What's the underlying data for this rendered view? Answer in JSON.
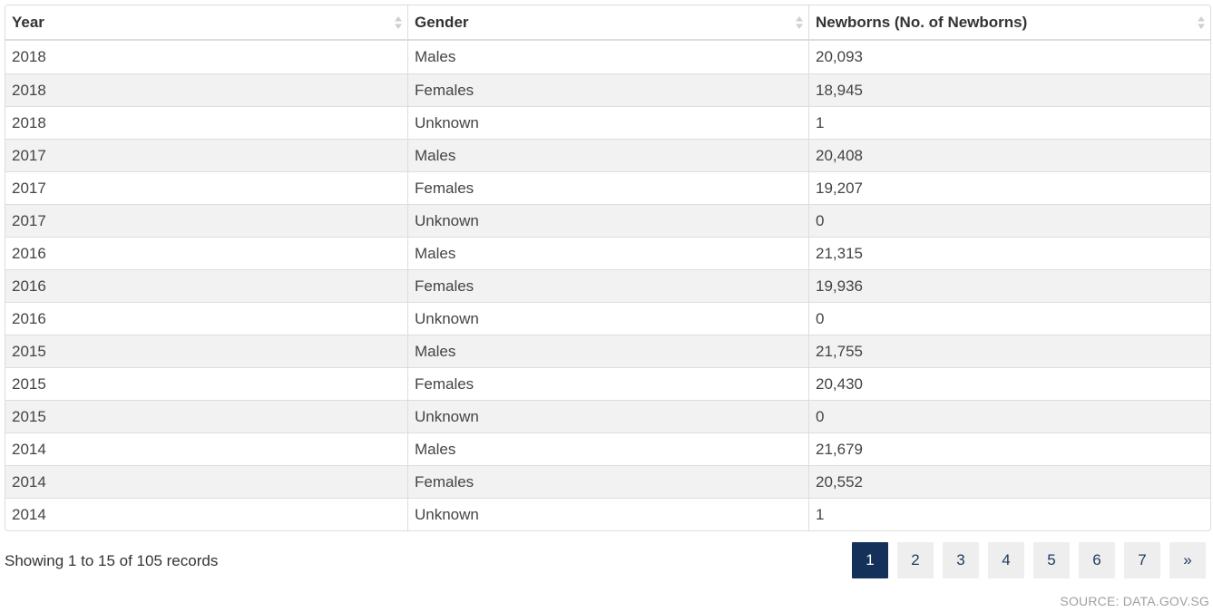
{
  "table": {
    "columns": [
      {
        "label": "Year"
      },
      {
        "label": "Gender"
      },
      {
        "label": "Newborns (No. of Newborns)"
      }
    ],
    "rows": [
      [
        "2018",
        "Males",
        "20,093"
      ],
      [
        "2018",
        "Females",
        "18,945"
      ],
      [
        "2018",
        "Unknown",
        "1"
      ],
      [
        "2017",
        "Males",
        "20,408"
      ],
      [
        "2017",
        "Females",
        "19,207"
      ],
      [
        "2017",
        "Unknown",
        "0"
      ],
      [
        "2016",
        "Males",
        "21,315"
      ],
      [
        "2016",
        "Females",
        "19,936"
      ],
      [
        "2016",
        "Unknown",
        "0"
      ],
      [
        "2015",
        "Males",
        "21,755"
      ],
      [
        "2015",
        "Females",
        "20,430"
      ],
      [
        "2015",
        "Unknown",
        "0"
      ],
      [
        "2014",
        "Males",
        "21,679"
      ],
      [
        "2014",
        "Females",
        "20,552"
      ],
      [
        "2014",
        "Unknown",
        "1"
      ]
    ]
  },
  "footer": {
    "info": "Showing 1 to 15 of 105 records",
    "pages": [
      "1",
      "2",
      "3",
      "4",
      "5",
      "6",
      "7"
    ],
    "next_label": "»",
    "active_page": "1",
    "source": "SOURCE: DATA.GOV.SG"
  },
  "colors": {
    "active_page_bg": "#143259",
    "page_bg": "#eeeeee",
    "stripe_bg": "#f2f2f2",
    "border": "#dddddd"
  },
  "icons": {
    "sort": "sort-both-icon"
  }
}
